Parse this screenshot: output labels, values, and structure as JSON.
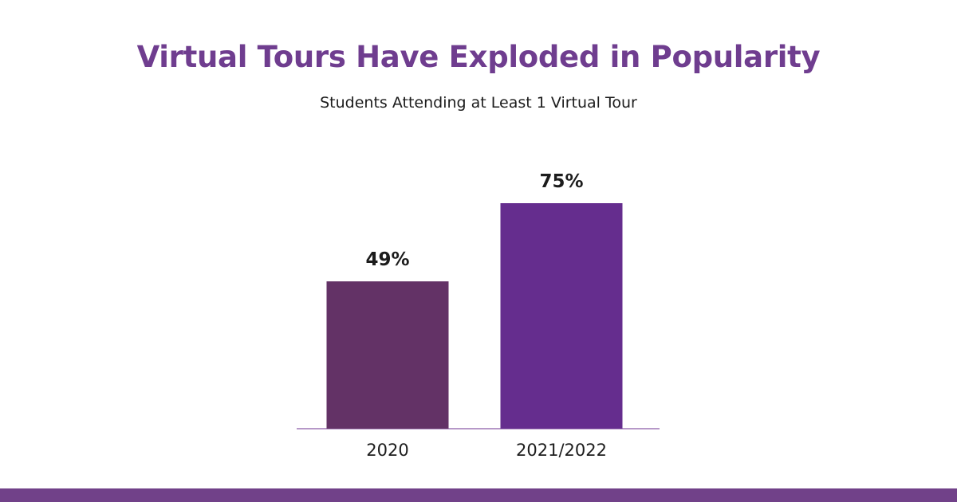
{
  "colors": {
    "title": "#6f3d8f",
    "bars": [
      "#633266",
      "#652d8e"
    ],
    "axis": "#8a5aa6",
    "footer": "#714189"
  },
  "chart_data": {
    "type": "bar",
    "title": "Virtual Tours Have Exploded in Popularity",
    "subtitle": "Students Attending at Least 1 Virtual Tour",
    "categories": [
      "2020",
      "2021/2022"
    ],
    "values": [
      49,
      75
    ],
    "value_labels": [
      "49%",
      "75%"
    ],
    "ylim": [
      0,
      100
    ],
    "grid": false,
    "legend": "none"
  }
}
